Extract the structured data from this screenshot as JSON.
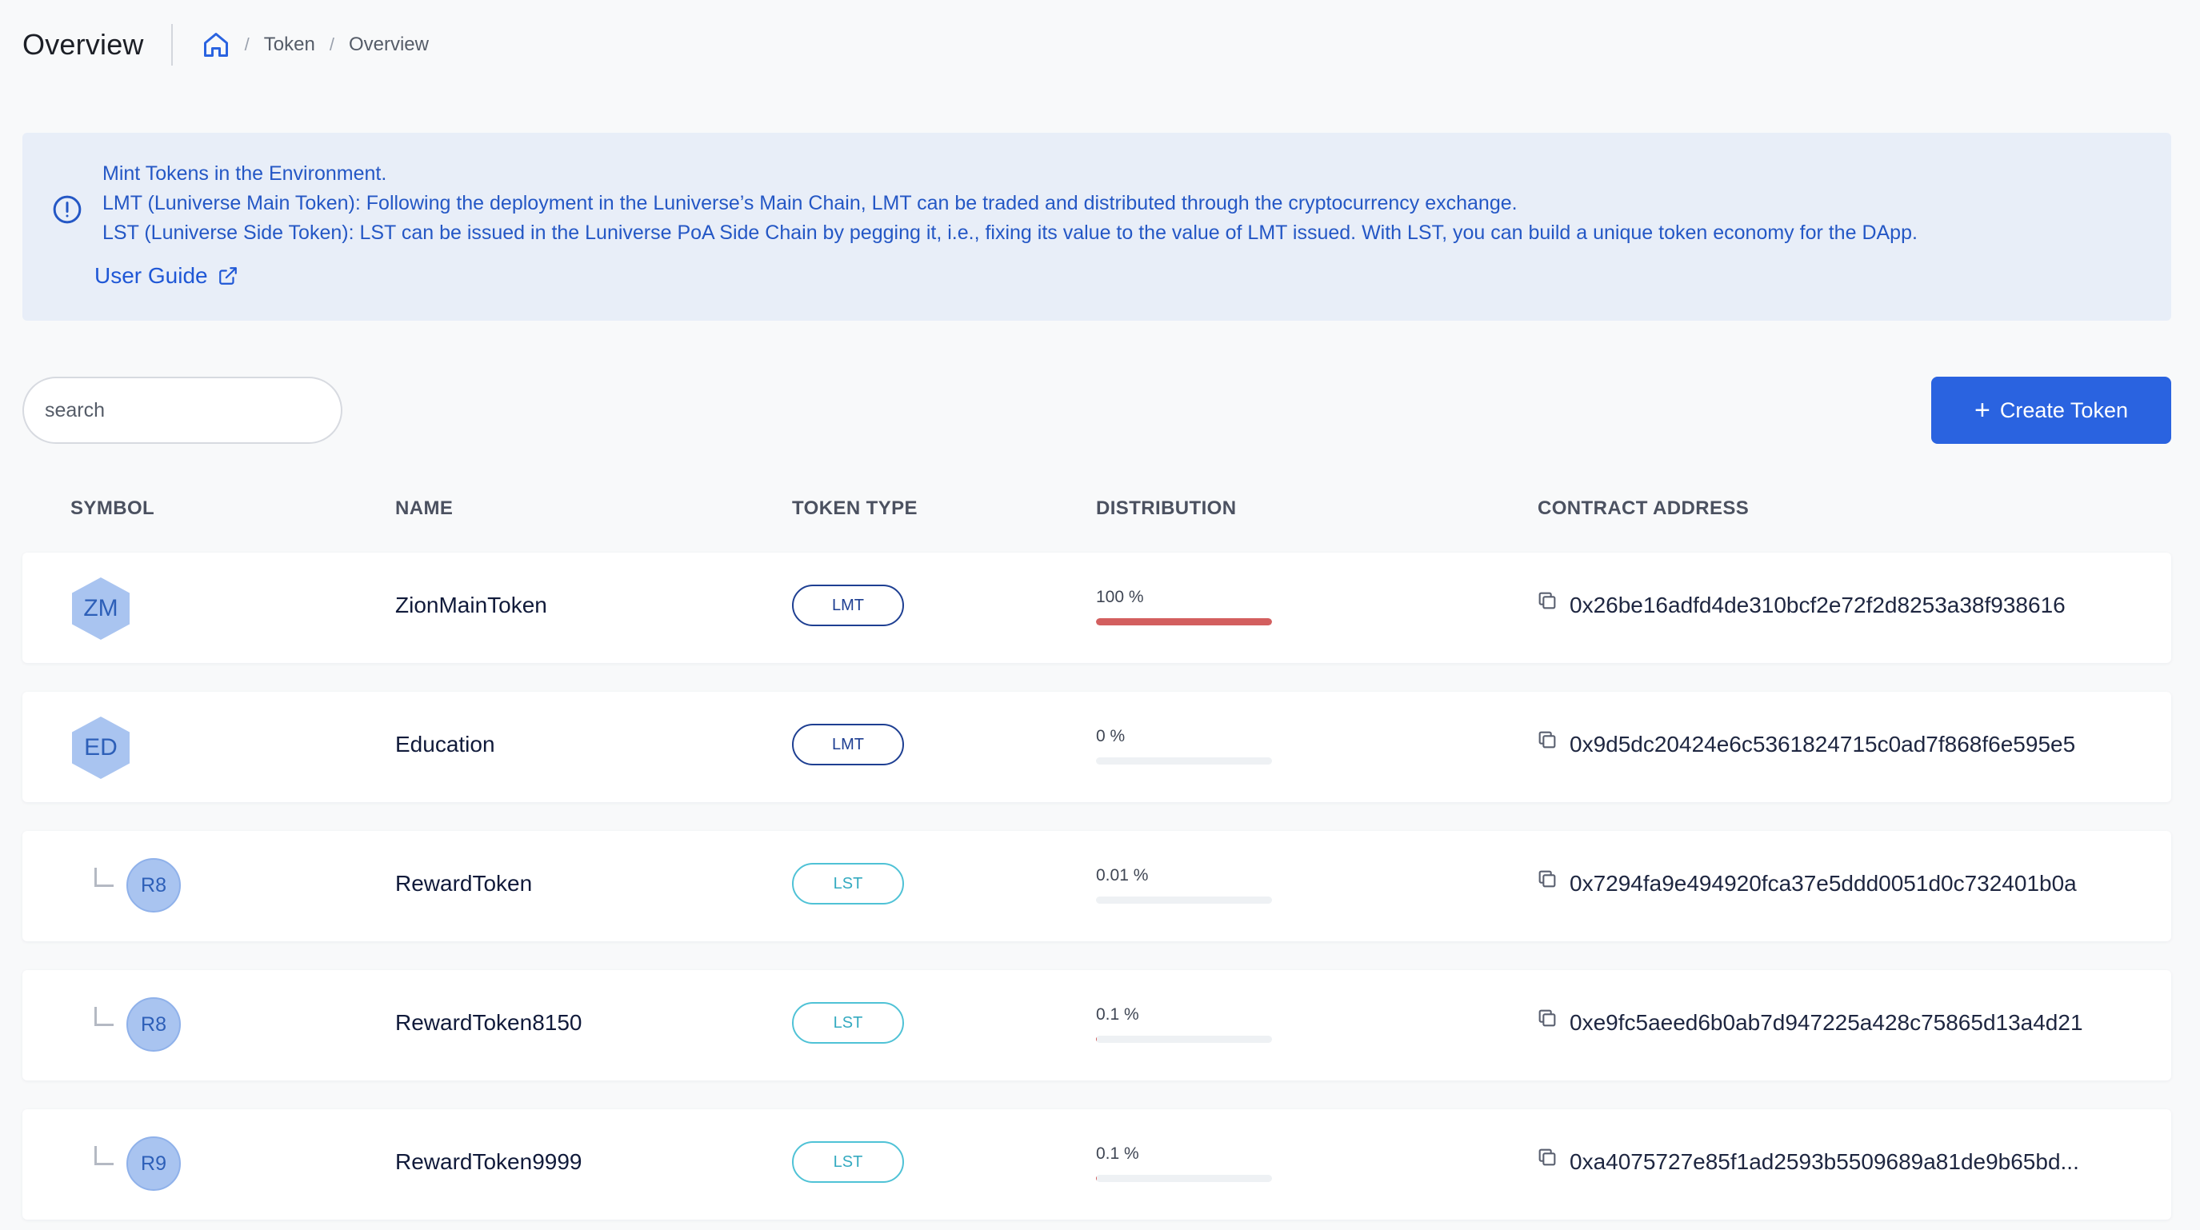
{
  "header": {
    "title": "Overview",
    "breadcrumb": [
      "Token",
      "Overview"
    ]
  },
  "info": {
    "lines": [
      "Mint Tokens in the Environment.",
      "LMT (Luniverse Main Token): Following the deployment in the Luniverse’s Main Chain, LMT can be traded and distributed through the cryptocurrency exchange.",
      "LST (Luniverse Side Token): LST can be issued in the Luniverse PoA Side Chain by pegging it, i.e., fixing its value to the value of LMT issued. With LST, you can build a unique token economy for the DApp."
    ],
    "guide_label": "User Guide"
  },
  "toolbar": {
    "search_value": "search",
    "search_placeholder": "Search",
    "create_label": "Create Token",
    "create_icon": "+"
  },
  "table": {
    "headers": [
      "SYMBOL",
      "NAME",
      "TOKEN TYPE",
      "DISTRIBUTION",
      "CONTRACT ADDRESS"
    ],
    "rows": [
      {
        "symbol": "ZM",
        "name": "ZionMainToken",
        "type": "LMT",
        "distribution_label": "100 %",
        "distribution": 1.0,
        "address": "0x26be16adfd4de310bcf2e72f2d8253a38f938616",
        "child": false
      },
      {
        "symbol": "ED",
        "name": "Education",
        "type": "LMT",
        "distribution_label": "0 %",
        "distribution": 0.0,
        "address": "0x9d5dc20424e6c5361824715c0ad7f868f6e595e5",
        "child": false
      },
      {
        "symbol": "R8",
        "name": "RewardToken",
        "type": "LST",
        "distribution_label": "0.01 %",
        "distribution": 0.0001,
        "address": "0x7294fa9e494920fca37e5ddd0051d0c732401b0a",
        "child": true
      },
      {
        "symbol": "R8",
        "name": "RewardToken8150",
        "type": "LST",
        "distribution_label": "0.1 %",
        "distribution": 0.001,
        "address": "0xe9fc5aeed6b0ab7d947225a428c75865d13a4d21",
        "child": true
      },
      {
        "symbol": "R9",
        "name": "RewardToken9999",
        "type": "LST",
        "distribution_label": "0.1 %",
        "distribution": 0.001,
        "address": "0xa4075727e85f1ad2593b5509689a81de9b65bd...",
        "child": true
      }
    ]
  },
  "colors": {
    "accent": "#2a63e0",
    "info_bg": "#e8eef8",
    "lmt": "#1e3f92",
    "lst": "#4fc2d6",
    "distribution_fill": "#d35f5f"
  }
}
